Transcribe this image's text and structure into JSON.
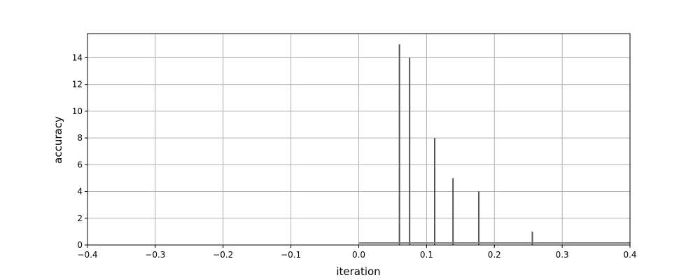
{
  "chart_data": {
    "type": "bar",
    "xlabel": "iteration",
    "ylabel": "accuracy",
    "xlim": [
      -0.4,
      0.4
    ],
    "ylim": [
      0,
      15.8
    ],
    "xticks": [
      -0.4,
      -0.3,
      -0.2,
      -0.1,
      0.0,
      0.1,
      0.2,
      0.3,
      0.4
    ],
    "xtick_labels": [
      "−0.4",
      "−0.3",
      "−0.2",
      "−0.1",
      "0.0",
      "0.1",
      "0.2",
      "0.3",
      "0.4"
    ],
    "yticks": [
      0,
      2,
      4,
      6,
      8,
      10,
      12,
      14
    ],
    "ytick_labels": [
      "0",
      "2",
      "4",
      "6",
      "8",
      "10",
      "12",
      "14"
    ],
    "grid": true,
    "bars": [
      {
        "x": 0.06,
        "value": 15
      },
      {
        "x": 0.075,
        "value": 14
      },
      {
        "x": 0.112,
        "value": 8
      },
      {
        "x": 0.139,
        "value": 5
      },
      {
        "x": 0.177,
        "value": 4
      },
      {
        "x": 0.256,
        "value": 1
      }
    ],
    "baseline_segment": {
      "x_start": 0.0,
      "x_end": 0.4,
      "value": 0.15
    },
    "colors": {
      "bars": "#555555",
      "baseline": "#777777",
      "grid": "#b0b0b0",
      "axes": "#000000"
    }
  }
}
